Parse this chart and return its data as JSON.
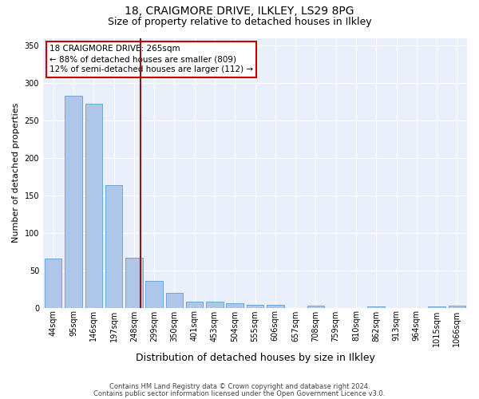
{
  "title1": "18, CRAIGMORE DRIVE, ILKLEY, LS29 8PG",
  "title2": "Size of property relative to detached houses in Ilkley",
  "xlabel": "Distribution of detached houses by size in Ilkley",
  "ylabel": "Number of detached properties",
  "categories": [
    "44sqm",
    "95sqm",
    "146sqm",
    "197sqm",
    "248sqm",
    "299sqm",
    "350sqm",
    "401sqm",
    "453sqm",
    "504sqm",
    "555sqm",
    "606sqm",
    "657sqm",
    "708sqm",
    "759sqm",
    "810sqm",
    "862sqm",
    "913sqm",
    "964sqm",
    "1015sqm",
    "1066sqm"
  ],
  "values": [
    65,
    283,
    272,
    163,
    67,
    36,
    20,
    8,
    8,
    6,
    4,
    4,
    0,
    3,
    0,
    0,
    2,
    0,
    0,
    2,
    3
  ],
  "bar_color": "#aec6e8",
  "bar_edge_color": "#5a9fd4",
  "vline_color": "#8b1a1a",
  "annotation_text": "18 CRAIGMORE DRIVE: 265sqm\n← 88% of detached houses are smaller (809)\n12% of semi-detached houses are larger (112) →",
  "annotation_box_color": "white",
  "annotation_box_edge_color": "#cc0000",
  "ylim": [
    0,
    360
  ],
  "yticks": [
    0,
    50,
    100,
    150,
    200,
    250,
    300,
    350
  ],
  "footer1": "Contains HM Land Registry data © Crown copyright and database right 2024.",
  "footer2": "Contains public sector information licensed under the Open Government Licence v3.0.",
  "bg_color": "#eaf0fb",
  "title1_fontsize": 10,
  "title2_fontsize": 9,
  "xlabel_fontsize": 9,
  "ylabel_fontsize": 8,
  "tick_fontsize": 7,
  "footer_fontsize": 6,
  "annot_fontsize": 7.5
}
